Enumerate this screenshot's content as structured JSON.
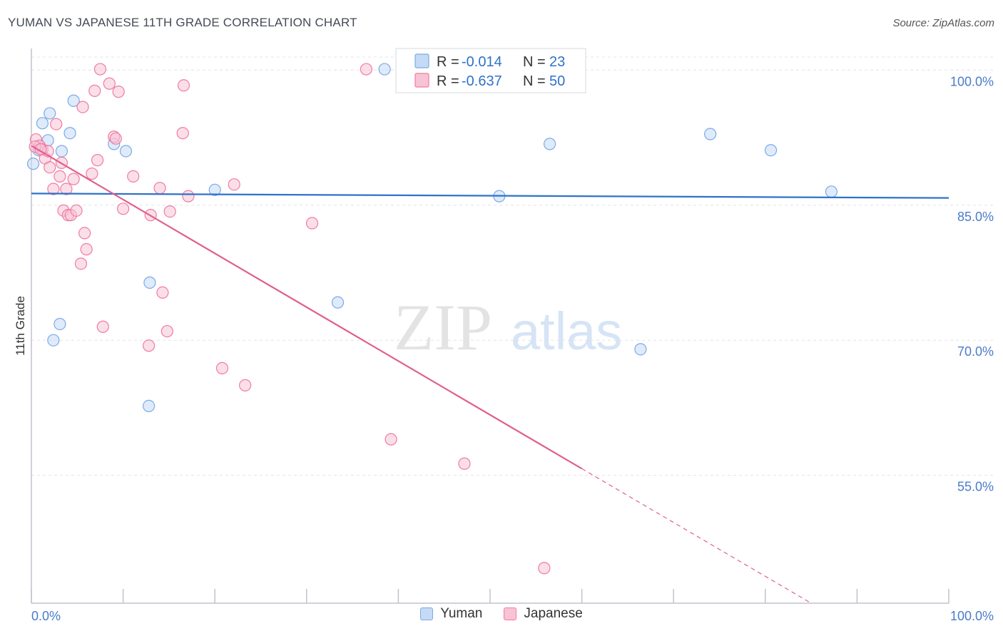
{
  "chart_data": {
    "type": "scatter",
    "title": "YUMAN VS JAPANESE 11TH GRADE CORRELATION CHART",
    "source": "Source: ZipAtlas.com",
    "ylabel": "11th Grade",
    "xlim": [
      0,
      100
    ],
    "ylim": [
      40.8,
      102.4
    ],
    "x_tick_labels": [
      "0.0%",
      "100.0%"
    ],
    "y_ticks": [
      100,
      85,
      70,
      55
    ],
    "y_tick_labels": [
      "100.0%",
      "85.0%",
      "70.0%",
      "55.0%"
    ],
    "watermark": {
      "zip": "ZIP",
      "atlas": "atlas"
    },
    "legend": [
      {
        "r_label": "R = ",
        "r_value": "-0.014",
        "n_label": "N = ",
        "n_value": "23"
      },
      {
        "r_label": "R = ",
        "r_value": "-0.637",
        "n_label": "N = ",
        "n_value": "50"
      }
    ],
    "series": [
      {
        "name": "Yuman",
        "color": "#7aaae6",
        "fill": "#c5dbf5",
        "line_color": "#2f72c9",
        "trend": {
          "x0": 0,
          "y0": 86.3,
          "x1": 100,
          "y1": 85.8,
          "dashed_from": 100
        },
        "points": [
          [
            0.2,
            89.6
          ],
          [
            0.8,
            91.1
          ],
          [
            1.2,
            94.1
          ],
          [
            1.8,
            92.2
          ],
          [
            2.0,
            95.2
          ],
          [
            3.3,
            91.0
          ],
          [
            4.2,
            93.0
          ],
          [
            4.6,
            96.6
          ],
          [
            9.0,
            91.8
          ],
          [
            10.3,
            91.0
          ],
          [
            20.0,
            86.7
          ],
          [
            38.5,
            100.1
          ],
          [
            51.0,
            86.0
          ],
          [
            56.5,
            91.8
          ],
          [
            74.0,
            92.9
          ],
          [
            80.6,
            91.1
          ],
          [
            87.2,
            86.5
          ],
          [
            12.9,
            76.4
          ],
          [
            3.1,
            71.8
          ],
          [
            2.4,
            70.0
          ],
          [
            33.4,
            74.2
          ],
          [
            12.8,
            62.7
          ],
          [
            66.4,
            69.0
          ]
        ]
      },
      {
        "name": "Japanese",
        "color": "#f07ba2",
        "fill": "#f8c4d5",
        "line_color": "#e0608e",
        "trend": {
          "x0": 0,
          "y0": 91.6,
          "x1": 85,
          "y1": 40.8,
          "dashed_from": 60
        },
        "points": [
          [
            0.5,
            92.3
          ],
          [
            0.9,
            91.6
          ],
          [
            1.2,
            91.2
          ],
          [
            1.5,
            90.2
          ],
          [
            1.8,
            91.0
          ],
          [
            2.0,
            89.2
          ],
          [
            2.4,
            86.8
          ],
          [
            2.7,
            94.0
          ],
          [
            3.1,
            88.2
          ],
          [
            3.3,
            89.7
          ],
          [
            3.5,
            84.4
          ],
          [
            3.8,
            86.8
          ],
          [
            4.0,
            83.9
          ],
          [
            4.3,
            83.9
          ],
          [
            4.6,
            87.9
          ],
          [
            4.9,
            84.4
          ],
          [
            5.4,
            78.5
          ],
          [
            5.6,
            95.9
          ],
          [
            5.8,
            81.9
          ],
          [
            6.0,
            80.1
          ],
          [
            6.6,
            88.5
          ],
          [
            6.9,
            97.7
          ],
          [
            7.2,
            90.0
          ],
          [
            7.5,
            100.1
          ],
          [
            7.8,
            71.5
          ],
          [
            8.5,
            98.5
          ],
          [
            9.0,
            92.6
          ],
          [
            9.2,
            92.4
          ],
          [
            9.5,
            97.6
          ],
          [
            10.0,
            84.6
          ],
          [
            11.1,
            88.2
          ],
          [
            12.8,
            69.4
          ],
          [
            13.0,
            83.9
          ],
          [
            14.0,
            86.9
          ],
          [
            14.3,
            75.3
          ],
          [
            14.8,
            71.0
          ],
          [
            15.1,
            84.3
          ],
          [
            16.5,
            93.0
          ],
          [
            16.6,
            98.3
          ],
          [
            17.1,
            86.0
          ],
          [
            20.8,
            66.9
          ],
          [
            22.1,
            87.3
          ],
          [
            23.3,
            65.0
          ],
          [
            30.6,
            83.0
          ],
          [
            36.5,
            100.1
          ],
          [
            39.2,
            59.0
          ],
          [
            47.2,
            56.3
          ],
          [
            55.9,
            44.7
          ],
          [
            0.4,
            91.5
          ],
          [
            1.0,
            91.2
          ]
        ]
      }
    ]
  }
}
